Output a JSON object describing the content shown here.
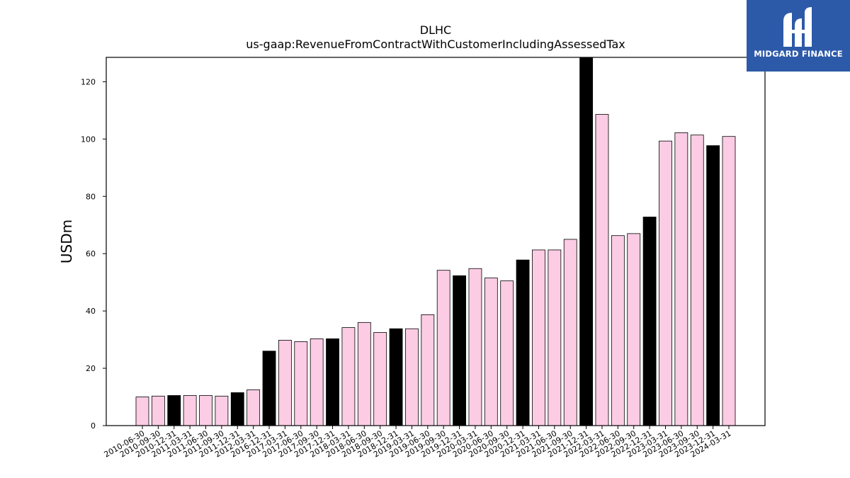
{
  "chart_data": {
    "type": "bar",
    "title": "DLHC",
    "subtitle": "us-gaap:RevenueFromContractWithCustomerIncludingAssessedTax",
    "xlabel": "",
    "ylabel": "USDm",
    "ylim": [
      0,
      128.5
    ],
    "yticks": [
      0,
      20,
      40,
      60,
      80,
      100,
      120
    ],
    "grid": false,
    "categories": [
      "2010-06-30",
      "2010-09-30",
      "2010-12-31",
      "2011-03-31",
      "2011-06-30",
      "2011-09-30",
      "2011-12-31",
      "2012-03-31",
      "2016-12-31",
      "2017-03-31",
      "2017-06-30",
      "2017-09-30",
      "2017-12-31",
      "2018-03-31",
      "2018-06-30",
      "2018-09-30",
      "2018-12-31",
      "2019-03-31",
      "2019-06-30",
      "2019-09-30",
      "2019-12-31",
      "2020-03-31",
      "2020-06-30",
      "2020-09-30",
      "2020-12-31",
      "2021-03-31",
      "2021-06-30",
      "2021-09-30",
      "2021-12-31",
      "2022-03-31",
      "2022-06-30",
      "2022-09-30",
      "2022-12-31",
      "2023-03-31",
      "2023-06-30",
      "2023-09-30",
      "2023-12-31",
      "2024-03-31"
    ],
    "values": [
      10.0,
      10.3,
      10.5,
      10.5,
      10.5,
      10.3,
      11.5,
      12.5,
      26.0,
      29.8,
      29.3,
      30.3,
      30.3,
      34.2,
      36.0,
      32.5,
      33.8,
      33.8,
      38.7,
      54.2,
      52.3,
      54.8,
      51.5,
      50.5,
      57.8,
      61.3,
      61.3,
      65.0,
      128.5,
      108.6,
      66.3,
      67.0,
      72.8,
      99.3,
      102.2,
      101.4,
      97.7,
      100.9
    ],
    "bar_colors": [
      "#fbcce4",
      "#fbcce4",
      "#000000",
      "#fbcce4",
      "#fbcce4",
      "#fbcce4",
      "#000000",
      "#fbcce4",
      "#000000",
      "#fbcce4",
      "#fbcce4",
      "#fbcce4",
      "#000000",
      "#fbcce4",
      "#fbcce4",
      "#fbcce4",
      "#000000",
      "#fbcce4",
      "#fbcce4",
      "#fbcce4",
      "#000000",
      "#fbcce4",
      "#fbcce4",
      "#fbcce4",
      "#000000",
      "#fbcce4",
      "#fbcce4",
      "#fbcce4",
      "#000000",
      "#fbcce4",
      "#fbcce4",
      "#fbcce4",
      "#000000",
      "#fbcce4",
      "#fbcce4",
      "#fbcce4",
      "#000000",
      "#fbcce4"
    ]
  },
  "logo": {
    "text": "MIDGARD FINANCE",
    "background": "#2d5aa8"
  }
}
